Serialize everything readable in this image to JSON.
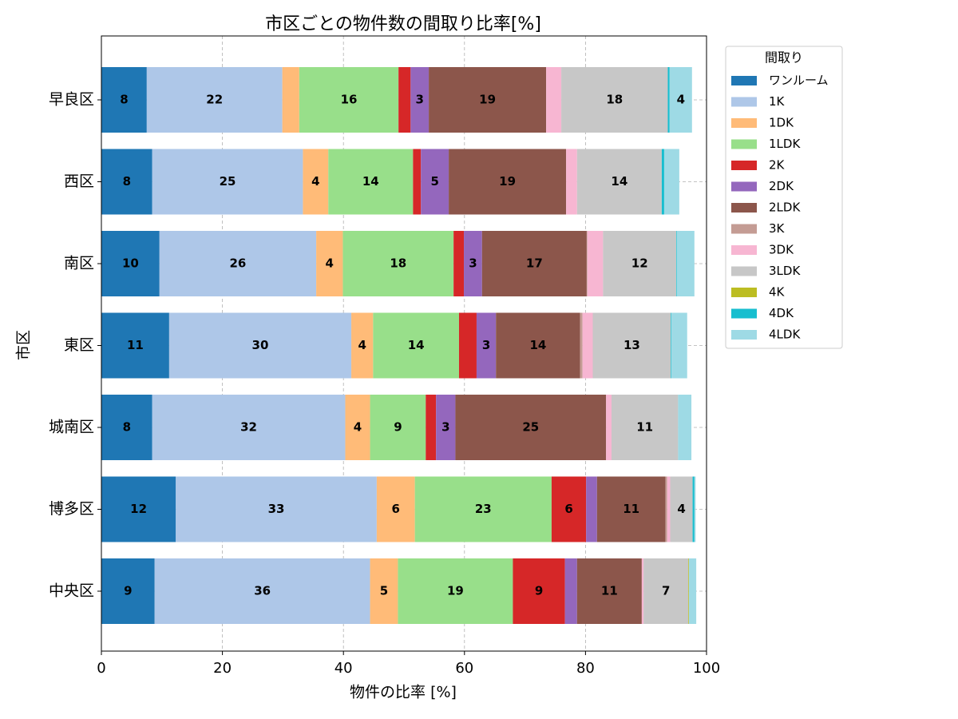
{
  "chart_data": {
    "type": "bar",
    "orientation": "horizontal",
    "stacked": true,
    "title": "市区ごとの物件数の間取り比率[%]",
    "xlabel": "物件の比率 [%]",
    "ylabel": "市区",
    "categories": [
      "早良区",
      "西区",
      "南区",
      "東区",
      "城南区",
      "博多区",
      "中央区"
    ],
    "xlim": [
      0,
      100
    ],
    "xticks": [
      0,
      20,
      40,
      60,
      80,
      100
    ],
    "grid": true,
    "legend_title": "間取り",
    "legend_position": "right",
    "series": [
      {
        "name": "ワンルーム",
        "color": "#1f77b4",
        "values": [
          7.5,
          8.4,
          9.6,
          11.2,
          8.4,
          12.3,
          8.8
        ],
        "value_labels": [
          "8",
          "8",
          "10",
          "11",
          "8",
          "12",
          "9"
        ]
      },
      {
        "name": "1K",
        "color": "#aec7e8",
        "values": [
          22.4,
          24.9,
          25.9,
          30.1,
          31.9,
          33.2,
          35.6
        ],
        "value_labels": [
          "22",
          "25",
          "26",
          "30",
          "32",
          "33",
          "36"
        ]
      },
      {
        "name": "1DK",
        "color": "#ffbb78",
        "values": [
          2.8,
          4.2,
          4.4,
          3.6,
          4.1,
          6.3,
          4.6
        ],
        "value_labels": [
          null,
          "4",
          "4",
          "4",
          "4",
          "6",
          "5"
        ]
      },
      {
        "name": "1LDK",
        "color": "#98df8a",
        "values": [
          16.4,
          14.0,
          18.3,
          14.2,
          9.2,
          22.6,
          19.0
        ],
        "value_labels": [
          "16",
          "14",
          "18",
          "14",
          "9",
          "23",
          "19"
        ]
      },
      {
        "name": "2K",
        "color": "#d62728",
        "values": [
          2.0,
          1.3,
          1.7,
          2.9,
          1.7,
          5.7,
          8.6
        ],
        "value_labels": [
          null,
          null,
          null,
          null,
          null,
          "6",
          "9"
        ]
      },
      {
        "name": "2DK",
        "color": "#9467bd",
        "values": [
          3.0,
          4.6,
          3.0,
          3.2,
          3.2,
          1.8,
          2.0
        ],
        "value_labels": [
          "3",
          "5",
          "3",
          "3",
          "3",
          null,
          null
        ]
      },
      {
        "name": "2LDK",
        "color": "#8c564b",
        "values": [
          19.4,
          19.4,
          17.3,
          13.9,
          24.9,
          11.3,
          10.7
        ],
        "value_labels": [
          "19",
          "19",
          "17",
          "14",
          "25",
          "11",
          "11"
        ]
      },
      {
        "name": "3K",
        "color": "#c49c94",
        "values": [
          0,
          0,
          0.1,
          0.4,
          0,
          0.3,
          0
        ]
      },
      {
        "name": "3DK",
        "color": "#f7b6d2",
        "values": [
          2.5,
          1.8,
          2.6,
          1.7,
          0.9,
          0.5,
          0.3
        ]
      },
      {
        "name": "3LDK",
        "color": "#c7c7c7",
        "values": [
          17.6,
          14.0,
          12.1,
          12.9,
          11.0,
          3.7,
          7.4
        ],
        "value_labels": [
          "18",
          "14",
          "12",
          "13",
          "11",
          "4",
          "7"
        ]
      },
      {
        "name": "4K",
        "color": "#bcbd22",
        "values": [
          0,
          0,
          0,
          0,
          0,
          0,
          0.1
        ]
      },
      {
        "name": "4DK",
        "color": "#17becf",
        "values": [
          0.3,
          0.4,
          0.1,
          0.1,
          0,
          0.3,
          0
        ]
      },
      {
        "name": "4LDK",
        "color": "#9edae5",
        "values": [
          3.7,
          2.5,
          2.9,
          2.6,
          2.2,
          0.2,
          1.2
        ],
        "value_labels": [
          "4",
          null,
          null,
          null,
          null,
          null,
          null
        ]
      }
    ]
  }
}
